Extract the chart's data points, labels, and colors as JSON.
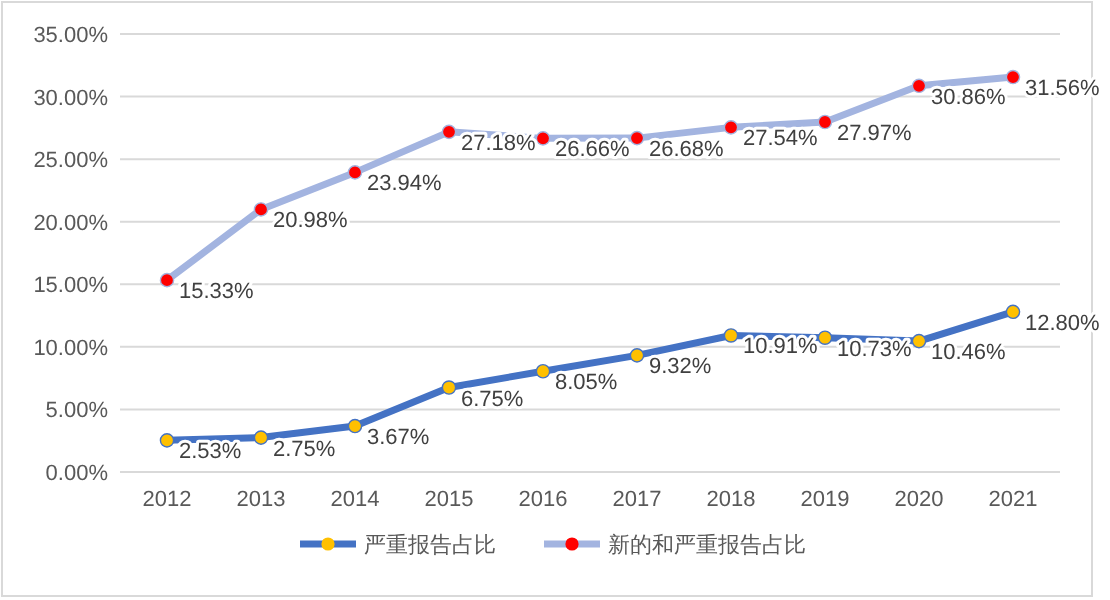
{
  "chart_data": {
    "type": "line",
    "categories": [
      "2012",
      "2013",
      "2014",
      "2015",
      "2016",
      "2017",
      "2018",
      "2019",
      "2020",
      "2021"
    ],
    "series": [
      {
        "name": "严重报告占比",
        "color": "#4472c4",
        "colors": [
          "#ffc000",
          "#ffc000",
          "#ffc000",
          "#ffc000",
          "#ffc000",
          "#ffc000",
          "#ffc000",
          "#ffc000",
          "#ffc000",
          "#ffc000"
        ],
        "values": [
          2.53,
          2.75,
          3.67,
          6.75,
          8.05,
          9.32,
          10.91,
          10.73,
          10.46,
          12.8
        ],
        "value_labels": [
          "2.53%",
          "2.75%",
          "3.67%",
          "6.75%",
          "8.05%",
          "9.32%",
          "10.91%",
          "10.73%",
          "10.46%",
          "12.80%"
        ]
      },
      {
        "name": "新的和严重报告占比",
        "color": "#a3b4e0",
        "colors": [
          "#ff0000",
          "#ff0000",
          "#ff0000",
          "#ff0000",
          "#ff0000",
          "#ff0000",
          "#ff0000",
          "#ff0000",
          "#ff0000",
          "#ff0000"
        ],
        "values": [
          15.33,
          20.98,
          23.94,
          27.18,
          26.66,
          26.68,
          27.54,
          27.97,
          30.86,
          31.56
        ],
        "value_labels": [
          "15.33%",
          "20.98%",
          "23.94%",
          "27.18%",
          "26.66%",
          "26.68%",
          "27.54%",
          "27.97%",
          "30.86%",
          "31.56%"
        ]
      }
    ],
    "ylim": [
      0,
      35
    ],
    "yticks": [
      {
        "value": 0,
        "label": "0.00%"
      },
      {
        "value": 5,
        "label": "5.00%"
      },
      {
        "value": 10,
        "label": "10.00%"
      },
      {
        "value": 15,
        "label": "15.00%"
      },
      {
        "value": 20,
        "label": "20.00%"
      },
      {
        "value": 25,
        "label": "25.00%"
      },
      {
        "value": 30,
        "label": "30.00%"
      },
      {
        "value": 35,
        "label": "35.00%"
      }
    ],
    "grid": "y",
    "legend": "bottom",
    "marker": "circle",
    "line_style": "solid"
  }
}
